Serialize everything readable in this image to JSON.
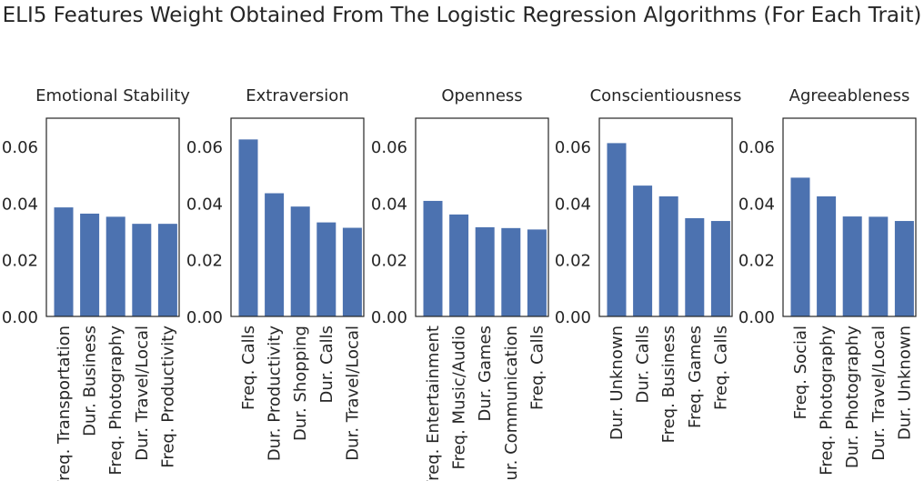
{
  "title": "ELI5 Features Weight Obtained From The Logistic Regression Algorithms (For Each Trait)",
  "colors": {
    "bar": "#4c72b0",
    "text": "#262626",
    "axis": "#262626"
  },
  "chart_data": [
    {
      "type": "bar",
      "title": "Emotional Stability",
      "categories": [
        "Freq. Transportation",
        "Dur. Business",
        "Freq. Photography",
        "Dur. Travel/Local",
        "Freq. Productivity"
      ],
      "values": [
        0.0385,
        0.0363,
        0.0352,
        0.0327,
        0.0327
      ],
      "ylim": [
        0,
        0.07
      ],
      "yticks": [
        "0.00",
        "0.02",
        "0.04",
        "0.06"
      ],
      "grid": false
    },
    {
      "type": "bar",
      "title": "Extraversion",
      "categories": [
        "Freq. Calls",
        "Dur. Productivity",
        "Dur. Shopping",
        "Dur. Calls",
        "Dur. Travel/Local"
      ],
      "values": [
        0.0625,
        0.0435,
        0.0388,
        0.0332,
        0.0313
      ],
      "ylim": [
        0,
        0.07
      ],
      "yticks": [
        "0.00",
        "0.02",
        "0.04",
        "0.06"
      ],
      "grid": false
    },
    {
      "type": "bar",
      "title": "Openness",
      "categories": [
        "Freq. Entertainment",
        "Freq. Music/Audio",
        "Dur. Games",
        "Dur. Communication",
        "Freq. Calls"
      ],
      "values": [
        0.0408,
        0.036,
        0.0315,
        0.0312,
        0.0307
      ],
      "ylim": [
        0,
        0.07
      ],
      "yticks": [
        "0.00",
        "0.02",
        "0.04",
        "0.06"
      ],
      "grid": false
    },
    {
      "type": "bar",
      "title": "Conscientiousness",
      "categories": [
        "Dur. Unknown",
        "Dur. Calls",
        "Freq. Business",
        "Freq. Games",
        "Freq. Calls"
      ],
      "values": [
        0.0612,
        0.0462,
        0.0424,
        0.0347,
        0.0337
      ],
      "ylim": [
        0,
        0.07
      ],
      "yticks": [
        "0.00",
        "0.02",
        "0.04",
        "0.06"
      ],
      "grid": false
    },
    {
      "type": "bar",
      "title": "Agreeableness",
      "categories": [
        "Freq. Social",
        "Freq. Photography",
        "Dur. Photography",
        "Dur. Travel/Local",
        "Dur. Unknown"
      ],
      "values": [
        0.049,
        0.0424,
        0.0353,
        0.0352,
        0.0337
      ],
      "ylim": [
        0,
        0.07
      ],
      "yticks": [
        "0.00",
        "0.02",
        "0.04",
        "0.06"
      ],
      "grid": false
    }
  ]
}
